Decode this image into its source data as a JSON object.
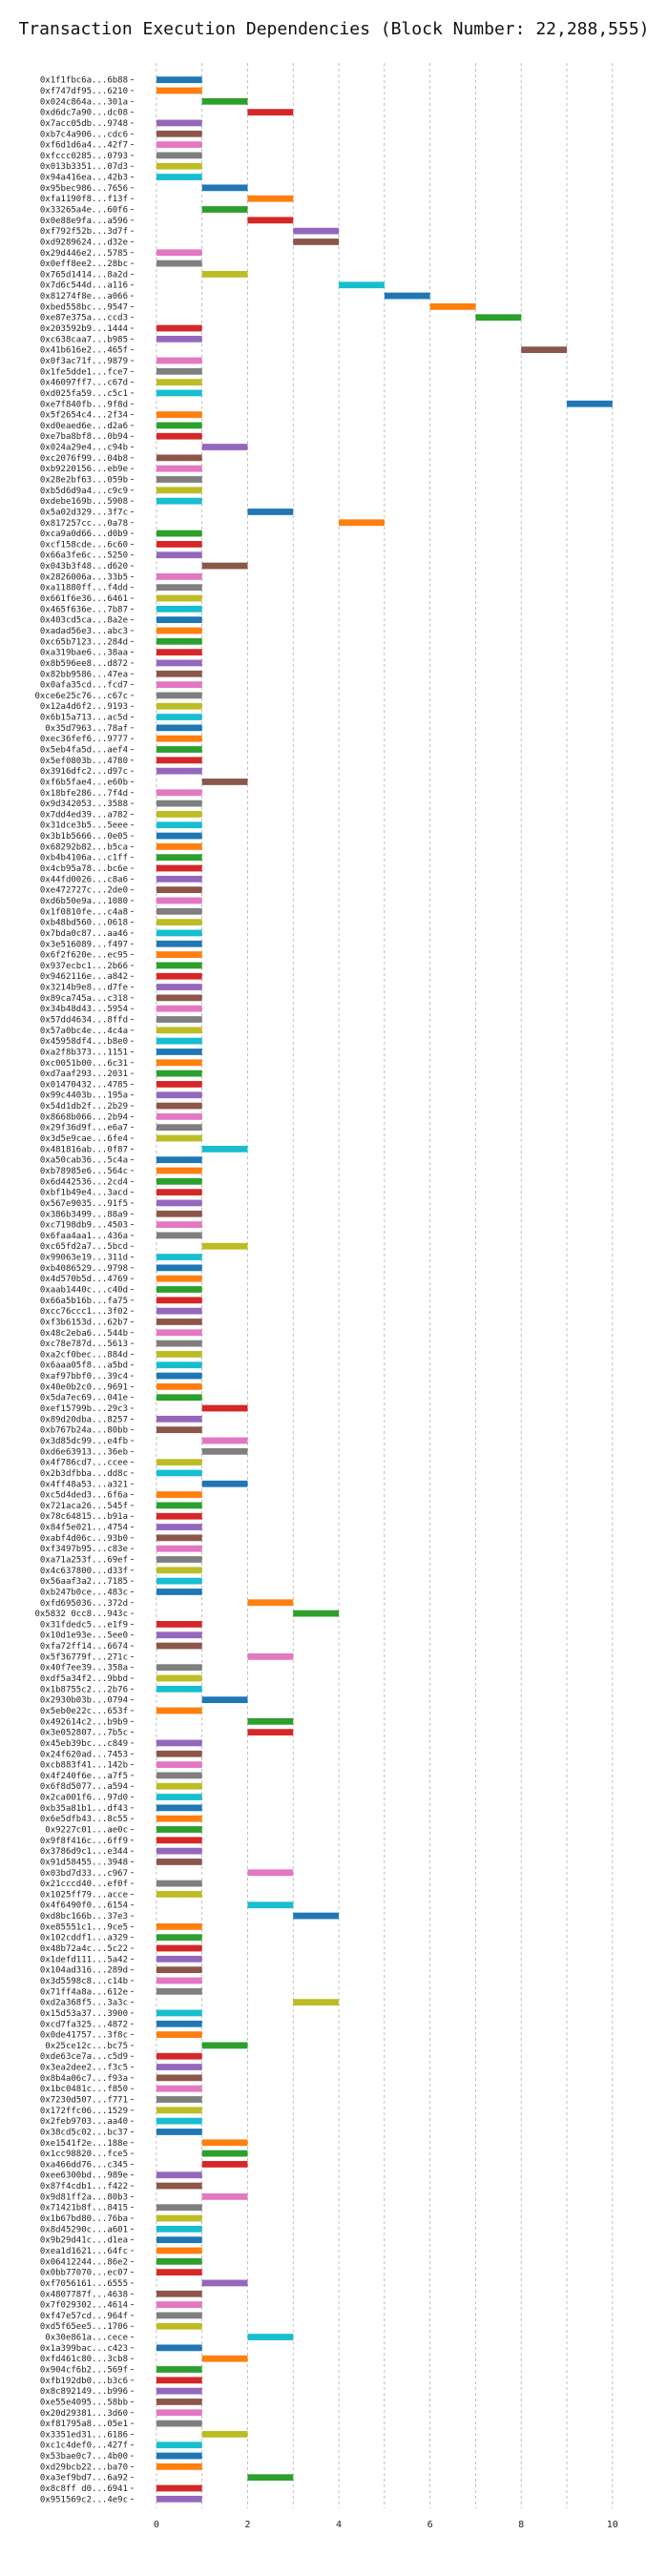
{
  "chart_data": {
    "type": "bar",
    "title": "Transaction Execution Dependencies (Block Number: 22,288,555)",
    "xlabel": "",
    "ylabel": "",
    "xlim": [
      -0.5,
      10.8
    ],
    "xticks": [
      0,
      2,
      4,
      6,
      8,
      10
    ],
    "grid": true,
    "series_color_cycle": [
      "#1f77b4",
      "#ff7f0e",
      "#2ca02c",
      "#d62728",
      "#9467bd",
      "#8c564b",
      "#e377c2",
      "#7f7f7f",
      "#bcbd22",
      "#17becf"
    ],
    "bar_width": 1,
    "transactions": [
      {
        "hash": "0x1f1fbc6a...6b88",
        "start": 0
      },
      {
        "hash": "0xf747df95...6210",
        "start": 0
      },
      {
        "hash": "0x024c864a...301a",
        "start": 1
      },
      {
        "hash": "0xd6dc7a90...dc08",
        "start": 2
      },
      {
        "hash": "0x7acc05db...9748",
        "start": 0
      },
      {
        "hash": "0xb7c4a906...cdc6",
        "start": 0
      },
      {
        "hash": "0xf6d1d6a4...42f7",
        "start": 0
      },
      {
        "hash": "0xfccc0285...0793",
        "start": 0
      },
      {
        "hash": "0x013b3351...07d3",
        "start": 0
      },
      {
        "hash": "0x94a416ea...42b3",
        "start": 0
      },
      {
        "hash": "0x95bec986...7656",
        "start": 1
      },
      {
        "hash": "0xfa1190f8...f13f",
        "start": 2
      },
      {
        "hash": "0x33265a4e...60f6",
        "start": 1
      },
      {
        "hash": "0x0e88e9fa...a596",
        "start": 2
      },
      {
        "hash": "0xf792f52b...3d7f",
        "start": 3
      },
      {
        "hash": "0xd9289624...d32e",
        "start": 3
      },
      {
        "hash": "0x29d446e2...5785",
        "start": 0
      },
      {
        "hash": "0x0eff8ee2...28bc",
        "start": 0
      },
      {
        "hash": "0x765d1414...8a2d",
        "start": 1
      },
      {
        "hash": "0x7d6c544d...a116",
        "start": 4
      },
      {
        "hash": "0x81274f8e...a066",
        "start": 5
      },
      {
        "hash": "0xbed558bc...9547",
        "start": 6
      },
      {
        "hash": "0xe87e375a...ccd3",
        "start": 7
      },
      {
        "hash": "0x203592b9...1444",
        "start": 0
      },
      {
        "hash": "0xc638caa7...b985",
        "start": 0
      },
      {
        "hash": "0x41b616e2...465f",
        "start": 8
      },
      {
        "hash": "0x0f3ac71f...9879",
        "start": 0
      },
      {
        "hash": "0x1fe5dde1...fce7",
        "start": 0
      },
      {
        "hash": "0x46097ff7...c67d",
        "start": 0
      },
      {
        "hash": "0xd025fa59...c5c1",
        "start": 0
      },
      {
        "hash": "0xe7f840fb...9f8d",
        "start": 9
      },
      {
        "hash": "0x5f2654c4...2f34",
        "start": 0
      },
      {
        "hash": "0xd0eaed6e...d2a6",
        "start": 0
      },
      {
        "hash": "0xe7ba8bf8...0b94",
        "start": 0
      },
      {
        "hash": "0x024a29e4...c94b",
        "start": 1
      },
      {
        "hash": "0xc2076f99...04b8",
        "start": 0
      },
      {
        "hash": "0xb9220156...eb9e",
        "start": 0
      },
      {
        "hash": "0x28e2bf63...059b",
        "start": 0
      },
      {
        "hash": "0xb5d6d9a4...c9c9",
        "start": 0
      },
      {
        "hash": "0xdebe169b...5908",
        "start": 0
      },
      {
        "hash": "0x5a02d329...3f7c",
        "start": 2
      },
      {
        "hash": "0x817257cc...0a78",
        "start": 4
      },
      {
        "hash": "0xca9a0d66...d0b9",
        "start": 0
      },
      {
        "hash": "0xcf158cde...6c60",
        "start": 0
      },
      {
        "hash": "0x66a3fe6c...5250",
        "start": 0
      },
      {
        "hash": "0x043b3f48...d620",
        "start": 1
      },
      {
        "hash": "0x2826006a...33b5",
        "start": 0
      },
      {
        "hash": "0xa11880ff...f4dd",
        "start": 0
      },
      {
        "hash": "0x661f6e36...6461",
        "start": 0
      },
      {
        "hash": "0x465f636e...7b87",
        "start": 0
      },
      {
        "hash": "0x403cd5ca...8a2e",
        "start": 0
      },
      {
        "hash": "0xadad56e3...abc3",
        "start": 0
      },
      {
        "hash": "0xc65b7123...284d",
        "start": 0
      },
      {
        "hash": "0xa319bae6...38aa",
        "start": 0
      },
      {
        "hash": "0x8b596ee8...d872",
        "start": 0
      },
      {
        "hash": "0x82bb9586...47ea",
        "start": 0
      },
      {
        "hash": "0x0afa35cd...fcd7",
        "start": 0
      },
      {
        "hash": "0xce6e25c76...c67c",
        "start": 0
      },
      {
        "hash": "0x12a4d6f2...9193",
        "start": 0
      },
      {
        "hash": "0x6b15a713...ac5d",
        "start": 0
      },
      {
        "hash": "0x35d7963...78af",
        "start": 0
      },
      {
        "hash": "0xec36fef6...9777",
        "start": 0
      },
      {
        "hash": "0x5eb4fa5d...aef4",
        "start": 0
      },
      {
        "hash": "0x5ef0803b...4780",
        "start": 0
      },
      {
        "hash": "0x3916dfc2...d97c",
        "start": 0
      },
      {
        "hash": "0xf6b5fae4...e60b",
        "start": 1
      },
      {
        "hash": "0x18bfe286...7f4d",
        "start": 0
      },
      {
        "hash": "0x9d342053...3588",
        "start": 0
      },
      {
        "hash": "0x7dd4ed39...a782",
        "start": 0
      },
      {
        "hash": "0x31dce3b5...5eee",
        "start": 0
      },
      {
        "hash": "0x3b1b5666...0e05",
        "start": 0
      },
      {
        "hash": "0x68292b82...b5ca",
        "start": 0
      },
      {
        "hash": "0xb4b4106a...c1ff",
        "start": 0
      },
      {
        "hash": "0x4cb95a78...bc6e",
        "start": 0
      },
      {
        "hash": "0x44fd0026...c8a6",
        "start": 0
      },
      {
        "hash": "0xe472727c...2de0",
        "start": 0
      },
      {
        "hash": "0xd6b50e9a...1080",
        "start": 0
      },
      {
        "hash": "0x1f0810fe...c4a8",
        "start": 0
      },
      {
        "hash": "0xb48bd560...0618",
        "start": 0
      },
      {
        "hash": "0x7bda0c87...aa46",
        "start": 0
      },
      {
        "hash": "0x3e516089...f497",
        "start": 0
      },
      {
        "hash": "0x6f2f620e...ec95",
        "start": 0
      },
      {
        "hash": "0x937ecbc1...2b66",
        "start": 0
      },
      {
        "hash": "0x9462116e...a842",
        "start": 0
      },
      {
        "hash": "0x3214b9e8...d7fe",
        "start": 0
      },
      {
        "hash": "0x89ca745a...c318",
        "start": 0
      },
      {
        "hash": "0x34b48d43...5954",
        "start": 0
      },
      {
        "hash": "0x57dd4634...8ffd",
        "start": 0
      },
      {
        "hash": "0x57a0bc4e...4c4a",
        "start": 0
      },
      {
        "hash": "0x45958df4...b8e0",
        "start": 0
      },
      {
        "hash": "0xa2f8b373...1151",
        "start": 0
      },
      {
        "hash": "0xc0051b00...6c31",
        "start": 0
      },
      {
        "hash": "0xd7aaf293...2031",
        "start": 0
      },
      {
        "hash": "0x01470432...4785",
        "start": 0
      },
      {
        "hash": "0x99c4403b...195a",
        "start": 0
      },
      {
        "hash": "0x54d1db2f...2b29",
        "start": 0
      },
      {
        "hash": "0x8668b066...2b94",
        "start": 0
      },
      {
        "hash": "0x29f36d9f...e6a7",
        "start": 0
      },
      {
        "hash": "0x3d5e9cae...6fe4",
        "start": 0
      },
      {
        "hash": "0x481816ab...0f87",
        "start": 1
      },
      {
        "hash": "0xa50cab36...5c4a",
        "start": 0
      },
      {
        "hash": "0xb78985e6...564c",
        "start": 0
      },
      {
        "hash": "0x6d442536...2cd4",
        "start": 0
      },
      {
        "hash": "0xbf1b49e4...3acd",
        "start": 0
      },
      {
        "hash": "0x567e9035...91f5",
        "start": 0
      },
      {
        "hash": "0x386b3499...88a9",
        "start": 0
      },
      {
        "hash": "0xc7198db9...4503",
        "start": 0
      },
      {
        "hash": "0x6faa4aa1...436a",
        "start": 0
      },
      {
        "hash": "0xc65fd2a7...5bcd",
        "start": 1
      },
      {
        "hash": "0x99063e19...311d",
        "start": 0
      },
      {
        "hash": "0xb4086529...9798",
        "start": 0
      },
      {
        "hash": "0x4d570b5d...4769",
        "start": 0
      },
      {
        "hash": "0xaab1440c...c40d",
        "start": 0
      },
      {
        "hash": "0x66a5b16b...fa75",
        "start": 0
      },
      {
        "hash": "0xcc76ccc1...3f02",
        "start": 0
      },
      {
        "hash": "0xf3b6153d...62b7",
        "start": 0
      },
      {
        "hash": "0x48c2eba6...544b",
        "start": 0
      },
      {
        "hash": "0xc78e787d...5613",
        "start": 0
      },
      {
        "hash": "0xa2cf0bec...884d",
        "start": 0
      },
      {
        "hash": "0x6aaa05f8...a5bd",
        "start": 0
      },
      {
        "hash": "0xaf97bbf0...39c4",
        "start": 0
      },
      {
        "hash": "0x40e0b2c0...9691",
        "start": 0
      },
      {
        "hash": "0x5da7ec69...041e",
        "start": 0
      },
      {
        "hash": "0xef15799b...29c3",
        "start": 1
      },
      {
        "hash": "0x89d20dba...8257",
        "start": 0
      },
      {
        "hash": "0xb767b24a...80bb",
        "start": 0
      },
      {
        "hash": "0x3d85dc99...e4fb",
        "start": 1
      },
      {
        "hash": "0xd6e63913...36eb",
        "start": 1
      },
      {
        "hash": "0x4f786cd7...ccee",
        "start": 0
      },
      {
        "hash": "0x2b3dfbba...dd8c",
        "start": 0
      },
      {
        "hash": "0x4ff48a53...a321",
        "start": 1
      },
      {
        "hash": "0xc5d4ded3...6f6a",
        "start": 0
      },
      {
        "hash": "0x721aca26...545f",
        "start": 0
      },
      {
        "hash": "0x78c64815...b91a",
        "start": 0
      },
      {
        "hash": "0x84f5e021...4754",
        "start": 0
      },
      {
        "hash": "0xabf4d06c...93b0",
        "start": 0
      },
      {
        "hash": "0xf3497b95...c83e",
        "start": 0
      },
      {
        "hash": "0xa71a253f...69ef",
        "start": 0
      },
      {
        "hash": "0x4c637800...d33f",
        "start": 0
      },
      {
        "hash": "0x56aaf3a2...7185",
        "start": 0
      },
      {
        "hash": "0xb247b0ce...483c",
        "start": 0
      },
      {
        "hash": "0xfd695036...372d",
        "start": 2
      },
      {
        "hash": "0x5832 0cc8...943c",
        "start": 3
      },
      {
        "hash": "0x31fdedc5...e1f9",
        "start": 0
      },
      {
        "hash": "0x10d1e93e...5ee0",
        "start": 0
      },
      {
        "hash": "0xfa72ff14...6674",
        "start": 0
      },
      {
        "hash": "0x5f36779f...271c",
        "start": 2
      },
      {
        "hash": "0x40f7ee39...358a",
        "start": 0
      },
      {
        "hash": "0xdf5a34f2...9bbd",
        "start": 0
      },
      {
        "hash": "0x1b8755c2...2b76",
        "start": 0
      },
      {
        "hash": "0x2930b03b...0794",
        "start": 1
      },
      {
        "hash": "0x5eb0e22c...653f",
        "start": 0
      },
      {
        "hash": "0x492614c2...b9b9",
        "start": 2
      },
      {
        "hash": "0x3e052807...7b5c",
        "start": 2
      },
      {
        "hash": "0x45eb39bc...c849",
        "start": 0
      },
      {
        "hash": "0x24f620ad...7453",
        "start": 0
      },
      {
        "hash": "0xcb883f41...142b",
        "start": 0
      },
      {
        "hash": "0x4f240f6e...a7f5",
        "start": 0
      },
      {
        "hash": "0x6f8d5077...a594",
        "start": 0
      },
      {
        "hash": "0x2ca001f6...97d0",
        "start": 0
      },
      {
        "hash": "0xb35a81b1...df43",
        "start": 0
      },
      {
        "hash": "0x6e5dfb43...8c55",
        "start": 0
      },
      {
        "hash": "0x9227c01...ae0c",
        "start": 0
      },
      {
        "hash": "0x9f8f416c...6ff9",
        "start": 0
      },
      {
        "hash": "0x3786d9c1...e344",
        "start": 0
      },
      {
        "hash": "0x91d58455...3948",
        "start": 0
      },
      {
        "hash": "0x03bd7d33...c967",
        "start": 2
      },
      {
        "hash": "0x21cccd40...ef0f",
        "start": 0
      },
      {
        "hash": "0x1025ff79...acce",
        "start": 0
      },
      {
        "hash": "0x4f6490f0...6154",
        "start": 2
      },
      {
        "hash": "0xd8bc166b...37e3",
        "start": 3
      },
      {
        "hash": "0xe85551c1...9ce5",
        "start": 0
      },
      {
        "hash": "0x102cddf1...a329",
        "start": 0
      },
      {
        "hash": "0x48b72a4c...5c22",
        "start": 0
      },
      {
        "hash": "0x1defd111...5a42",
        "start": 0
      },
      {
        "hash": "0x104ad316...289d",
        "start": 0
      },
      {
        "hash": "0x3d5598c8...c14b",
        "start": 0
      },
      {
        "hash": "0x71ff4a8a...612e",
        "start": 0
      },
      {
        "hash": "0xd2a368f5...3a3c",
        "start": 3
      },
      {
        "hash": "0x15d53a37...3900",
        "start": 0
      },
      {
        "hash": "0xcd7fa325...4872",
        "start": 0
      },
      {
        "hash": "0x0de41757...3f8c",
        "start": 0
      },
      {
        "hash": "0x25ce12c...bc75",
        "start": 1
      },
      {
        "hash": "0xde63ce7a...c5d9",
        "start": 0
      },
      {
        "hash": "0x3ea2dee2...f3c5",
        "start": 0
      },
      {
        "hash": "0x8b4a06c7...f93a",
        "start": 0
      },
      {
        "hash": "0x1bc0481c...f850",
        "start": 0
      },
      {
        "hash": "0x7230d507...f771",
        "start": 0
      },
      {
        "hash": "0x172ffc06...1529",
        "start": 0
      },
      {
        "hash": "0x2feb9703...aa40",
        "start": 0
      },
      {
        "hash": "0x38cd5c02...bc37",
        "start": 0
      },
      {
        "hash": "0xe1541f2e...188e",
        "start": 1
      },
      {
        "hash": "0x1cc98820...fce5",
        "start": 1
      },
      {
        "hash": "0xa466dd76...c345",
        "start": 1
      },
      {
        "hash": "0xee6300bd...989e",
        "start": 0
      },
      {
        "hash": "0x87f4cdb1...f422",
        "start": 0
      },
      {
        "hash": "0x9d81ff2a...80b3",
        "start": 1
      },
      {
        "hash": "0x71421b8f...8415",
        "start": 0
      },
      {
        "hash": "0x1b67bd80...76ba",
        "start": 0
      },
      {
        "hash": "0x8d45290c...a601",
        "start": 0
      },
      {
        "hash": "0x9b29d41c...d1ea",
        "start": 0
      },
      {
        "hash": "0xea1d1621...64fc",
        "start": 0
      },
      {
        "hash": "0x06412244...86e2",
        "start": 0
      },
      {
        "hash": "0x0bb77070...ec07",
        "start": 0
      },
      {
        "hash": "0xf7056161...6555",
        "start": 1
      },
      {
        "hash": "0x4807787f...4638",
        "start": 0
      },
      {
        "hash": "0x7f029302...4614",
        "start": 0
      },
      {
        "hash": "0xf47e57cd...964f",
        "start": 0
      },
      {
        "hash": "0xd5f65ee5...1706",
        "start": 0
      },
      {
        "hash": "0x30e861a...cece",
        "start": 2
      },
      {
        "hash": "0x1a399bac...c423",
        "start": 0
      },
      {
        "hash": "0xfd461c80...3cb8",
        "start": 1
      },
      {
        "hash": "0x904cf6b2...569f",
        "start": 0
      },
      {
        "hash": "0xfb192db0...b3c6",
        "start": 0
      },
      {
        "hash": "0x8c892149...b996",
        "start": 0
      },
      {
        "hash": "0xe55e4095...58bb",
        "start": 0
      },
      {
        "hash": "0x20d29381...3d60",
        "start": 0
      },
      {
        "hash": "0xf81795a8...05e1",
        "start": 0
      },
      {
        "hash": "0x3351ed31...6186",
        "start": 1
      },
      {
        "hash": "0xc1c4def0...427f",
        "start": 0
      },
      {
        "hash": "0x53bae0c7...4b00",
        "start": 0
      },
      {
        "hash": "0xd29bcb22...ba70",
        "start": 0
      },
      {
        "hash": "0xa3ef9bd7...6a92",
        "start": 2
      },
      {
        "hash": "0x8c8ff d0...6941",
        "start": 0
      },
      {
        "hash": "0x951569c2...4e9c",
        "start": 0
      }
    ]
  }
}
